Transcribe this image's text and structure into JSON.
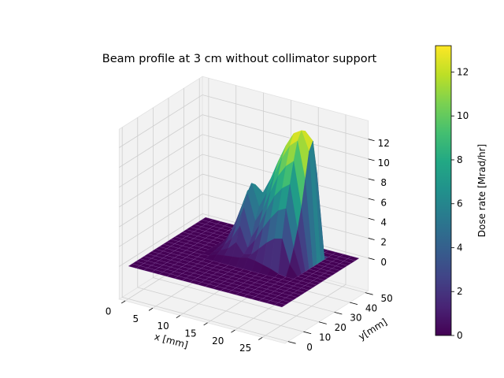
{
  "chart_data": {
    "type": "surface3d",
    "title": "Beam profile at 3 cm without collimator support",
    "xlabel": "x [mm]",
    "ylabel": "y[mm]",
    "zlabel": "",
    "colorbar_label": "Dose rate [Mrad/hr]",
    "colormap": "viridis",
    "xlim": [
      0,
      28
    ],
    "ylim": [
      0,
      50
    ],
    "zlim": [
      0,
      13.2
    ],
    "x_ticks": [
      0,
      5,
      10,
      15,
      20,
      25
    ],
    "x_tick_labels": [
      "0",
      "5",
      "10",
      "15",
      "20",
      "25"
    ],
    "y_ticks": [
      0,
      10,
      20,
      30,
      40,
      50
    ],
    "y_tick_labels": [
      "0",
      "10",
      "20",
      "30",
      "40",
      "50"
    ],
    "z_ticks": [
      0,
      2,
      4,
      6,
      8,
      10,
      12
    ],
    "z_tick_labels": [
      "0",
      "2",
      "4",
      "6",
      "8",
      "10",
      "12"
    ],
    "colorbar_ticks": [
      0,
      2,
      4,
      6,
      8,
      10,
      12
    ],
    "colorbar_tick_labels": [
      "0",
      "2",
      "4",
      "6",
      "8",
      "10",
      "12"
    ],
    "colorbar_range": [
      0,
      13.2
    ],
    "grid": true,
    "surface": {
      "x": [
        0,
        1.4,
        2.8,
        4.2,
        5.6,
        7.0,
        8.4,
        9.8,
        11.2,
        12.6,
        14.0,
        15.4,
        16.8,
        18.2,
        19.6,
        21.0,
        22.4,
        23.8,
        25.2,
        26.6,
        28.0
      ],
      "y": [
        0,
        2.5,
        5,
        7.5,
        10,
        12.5,
        15,
        17.5,
        20,
        22.5,
        25,
        27.5,
        30,
        32.5,
        35,
        37.5,
        40,
        42.5,
        45,
        47.5,
        50
      ],
      "z": [
        [
          0,
          0,
          0,
          0,
          0,
          0,
          0,
          0,
          0,
          0,
          0,
          0,
          0,
          0,
          0,
          0,
          0,
          0,
          0,
          0,
          0
        ],
        [
          0,
          0,
          0,
          0,
          0,
          0,
          0,
          0,
          0,
          0,
          0,
          0,
          0,
          0,
          0,
          0,
          0,
          0,
          0,
          0,
          0
        ],
        [
          0,
          0,
          0,
          0,
          0,
          0,
          0,
          0,
          0,
          0,
          0,
          0,
          0,
          0,
          0,
          0,
          0,
          0,
          0,
          0,
          0
        ],
        [
          0,
          0,
          0,
          0,
          0,
          0,
          0,
          0,
          0,
          0,
          0,
          0,
          0,
          0,
          0,
          0,
          0,
          0,
          0,
          0,
          0
        ],
        [
          0,
          0,
          0,
          0,
          0,
          0,
          0,
          0,
          0,
          0,
          0,
          0,
          0,
          0,
          0,
          0,
          0,
          0,
          0,
          0,
          0
        ],
        [
          0,
          0,
          0,
          0,
          0,
          0,
          0,
          0,
          0,
          0,
          0,
          0,
          0,
          0,
          0,
          0,
          0,
          0,
          0,
          0,
          0
        ],
        [
          0,
          0,
          0,
          0,
          0,
          0,
          0,
          0,
          0,
          0,
          0,
          0,
          0,
          0,
          0,
          0,
          0,
          0,
          0,
          0,
          0
        ],
        [
          0,
          0,
          0,
          0,
          0,
          0,
          0,
          0,
          0,
          0,
          0,
          0,
          0,
          0,
          0,
          0,
          0,
          0,
          0,
          0,
          0
        ],
        [
          0,
          0,
          0,
          0,
          0,
          0,
          0,
          0,
          0,
          0,
          0,
          0,
          0,
          0,
          0,
          0,
          0,
          0,
          0,
          0,
          0
        ],
        [
          0,
          0,
          0,
          0,
          0,
          0,
          0.1,
          0.4,
          0.5,
          0.6,
          0.7,
          0.9,
          0.8,
          0.6,
          0.4,
          0.1,
          0,
          0,
          0,
          0,
          0
        ],
        [
          0,
          0,
          0,
          0,
          0,
          0,
          0.2,
          0.6,
          1.0,
          1.8,
          0.8,
          1.0,
          1.8,
          2.6,
          3.2,
          3.4,
          1.0,
          0,
          0,
          0,
          0
        ],
        [
          0,
          0,
          0,
          0,
          0,
          0,
          0.3,
          0.9,
          1.8,
          3.2,
          1.2,
          2.2,
          3.6,
          4.8,
          5.8,
          6.2,
          2.4,
          0,
          0,
          0,
          0
        ],
        [
          0,
          0,
          0,
          0,
          0,
          0,
          0.4,
          1.4,
          2.8,
          4.8,
          2.0,
          3.4,
          5.2,
          6.8,
          7.8,
          8.4,
          4.0,
          0,
          0,
          0,
          0
        ],
        [
          0,
          0,
          0,
          0,
          0,
          0,
          0.5,
          2.0,
          3.8,
          6.0,
          3.4,
          4.8,
          6.8,
          8.6,
          9.8,
          10.5,
          6.0,
          0,
          0,
          0,
          0
        ],
        [
          0,
          0,
          0,
          0,
          0,
          0,
          0.5,
          2.6,
          4.8,
          6.8,
          4.6,
          6.2,
          8.2,
          10.2,
          11.6,
          12.3,
          8.6,
          0,
          0,
          0,
          0
        ],
        [
          0,
          0,
          0,
          0,
          0,
          0,
          0.4,
          3.0,
          5.6,
          6.4,
          5.8,
          7.4,
          9.4,
          11.2,
          12.6,
          13.1,
          11.2,
          0,
          0,
          0,
          0
        ],
        [
          0,
          0,
          0,
          0,
          0,
          0,
          0.3,
          2.8,
          5.2,
          5.2,
          5.6,
          7.6,
          9.6,
          11.0,
          12.2,
          12.8,
          12.0,
          0,
          0,
          0,
          0
        ],
        [
          0,
          0,
          0,
          0,
          0,
          0,
          0.2,
          1.6,
          2.8,
          2.6,
          3.2,
          4.8,
          6.4,
          7.6,
          8.6,
          9.2,
          8.6,
          0,
          0,
          0,
          0
        ],
        [
          0,
          0,
          0,
          0,
          0,
          0,
          0,
          0,
          0,
          0,
          0,
          0,
          0,
          0,
          0,
          0,
          0,
          0,
          0,
          0,
          0
        ],
        [
          0,
          0,
          0,
          0,
          0,
          0,
          0,
          0,
          0,
          0,
          0,
          0,
          0,
          0,
          0,
          0,
          0,
          0,
          0,
          0,
          0
        ],
        [
          0,
          0,
          0,
          0,
          0,
          0,
          0,
          0,
          0,
          0,
          0,
          0,
          0,
          0,
          0,
          0,
          0,
          0,
          0,
          0,
          0
        ]
      ]
    }
  }
}
